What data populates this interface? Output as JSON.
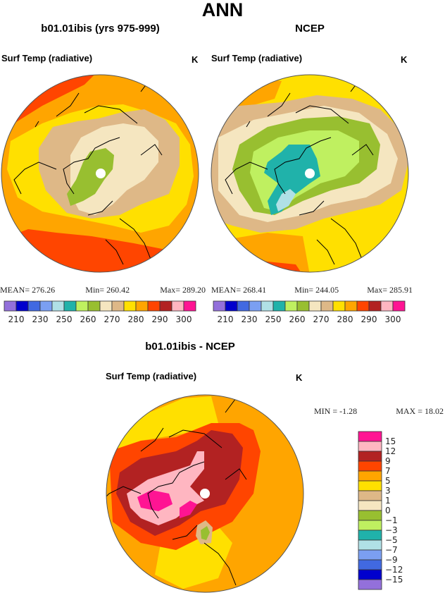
{
  "chart_data": [
    {
      "type": "heatmap",
      "projection": "north-polar-stereographic",
      "page_title": "ANN",
      "title": "b01.01ibis (yrs 975-999)",
      "variable": "Surf Temp (radiative)",
      "units": "K",
      "stats": {
        "mean_label": "MEAN=",
        "mean": "276.26",
        "min_label": "Min=",
        "min": "260.42",
        "max_label": "Max=",
        "max": "289.20"
      },
      "colorbar": {
        "orientation": "horizontal",
        "levels": [
          210,
          220,
          230,
          240,
          250,
          255,
          260,
          265,
          270,
          275,
          280,
          285,
          290,
          295,
          300
        ],
        "tick_labels": [
          "210",
          "230",
          "250",
          "260",
          "270",
          "280",
          "290",
          "300"
        ],
        "colors": [
          "#9370DB",
          "#0000CD",
          "#4169E1",
          "#7B9FF2",
          "#B0E0E6",
          "#20B2AA",
          "#BFF060",
          "#98BF30",
          "#F5E6C0",
          "#DEB887",
          "#FFE000",
          "#FFA500",
          "#FF4500",
          "#B22222",
          "#FFB6C1",
          "#FF1493"
        ]
      }
    },
    {
      "type": "heatmap",
      "projection": "north-polar-stereographic",
      "title": "NCEP",
      "variable": "Surf Temp (radiative)",
      "units": "K",
      "stats": {
        "mean_label": "MEAN=",
        "mean": "268.41",
        "min_label": "Min=",
        "min": "244.05",
        "max_label": "Max=",
        "max": "285.91"
      },
      "colorbar": {
        "orientation": "horizontal",
        "levels": [
          210,
          220,
          230,
          240,
          250,
          255,
          260,
          265,
          270,
          275,
          280,
          285,
          290,
          295,
          300
        ],
        "tick_labels": [
          "210",
          "230",
          "250",
          "260",
          "270",
          "280",
          "290",
          "300"
        ],
        "colors": [
          "#9370DB",
          "#0000CD",
          "#4169E1",
          "#7B9FF2",
          "#B0E0E6",
          "#20B2AA",
          "#BFF060",
          "#98BF30",
          "#F5E6C0",
          "#DEB887",
          "#FFE000",
          "#FFA500",
          "#FF4500",
          "#B22222",
          "#FFB6C1",
          "#FF1493"
        ]
      }
    },
    {
      "type": "heatmap",
      "projection": "north-polar-stereographic",
      "title": "b01.01ibis - NCEP",
      "variable": "Surf Temp (radiative)",
      "units": "K",
      "stats": {
        "min_label": "MIN =",
        "min": "-1.28",
        "max_label": "MAX =",
        "max": "18.02"
      },
      "colorbar": {
        "orientation": "vertical",
        "tick_labels": [
          "15",
          "12",
          "9",
          "7",
          "5",
          "3",
          "1",
          "0",
          "−1",
          "−3",
          "−5",
          "−7",
          "−9",
          "−12",
          "−15"
        ],
        "colors": [
          "#FF1493",
          "#FFB6C1",
          "#B22222",
          "#FF4500",
          "#FFA500",
          "#FFE000",
          "#DEB887",
          "#F5E6C0",
          "#98BF30",
          "#BFF060",
          "#20B2AA",
          "#B0E0E6",
          "#7B9FF2",
          "#4169E1",
          "#0000CD",
          "#9370DB"
        ]
      }
    }
  ]
}
